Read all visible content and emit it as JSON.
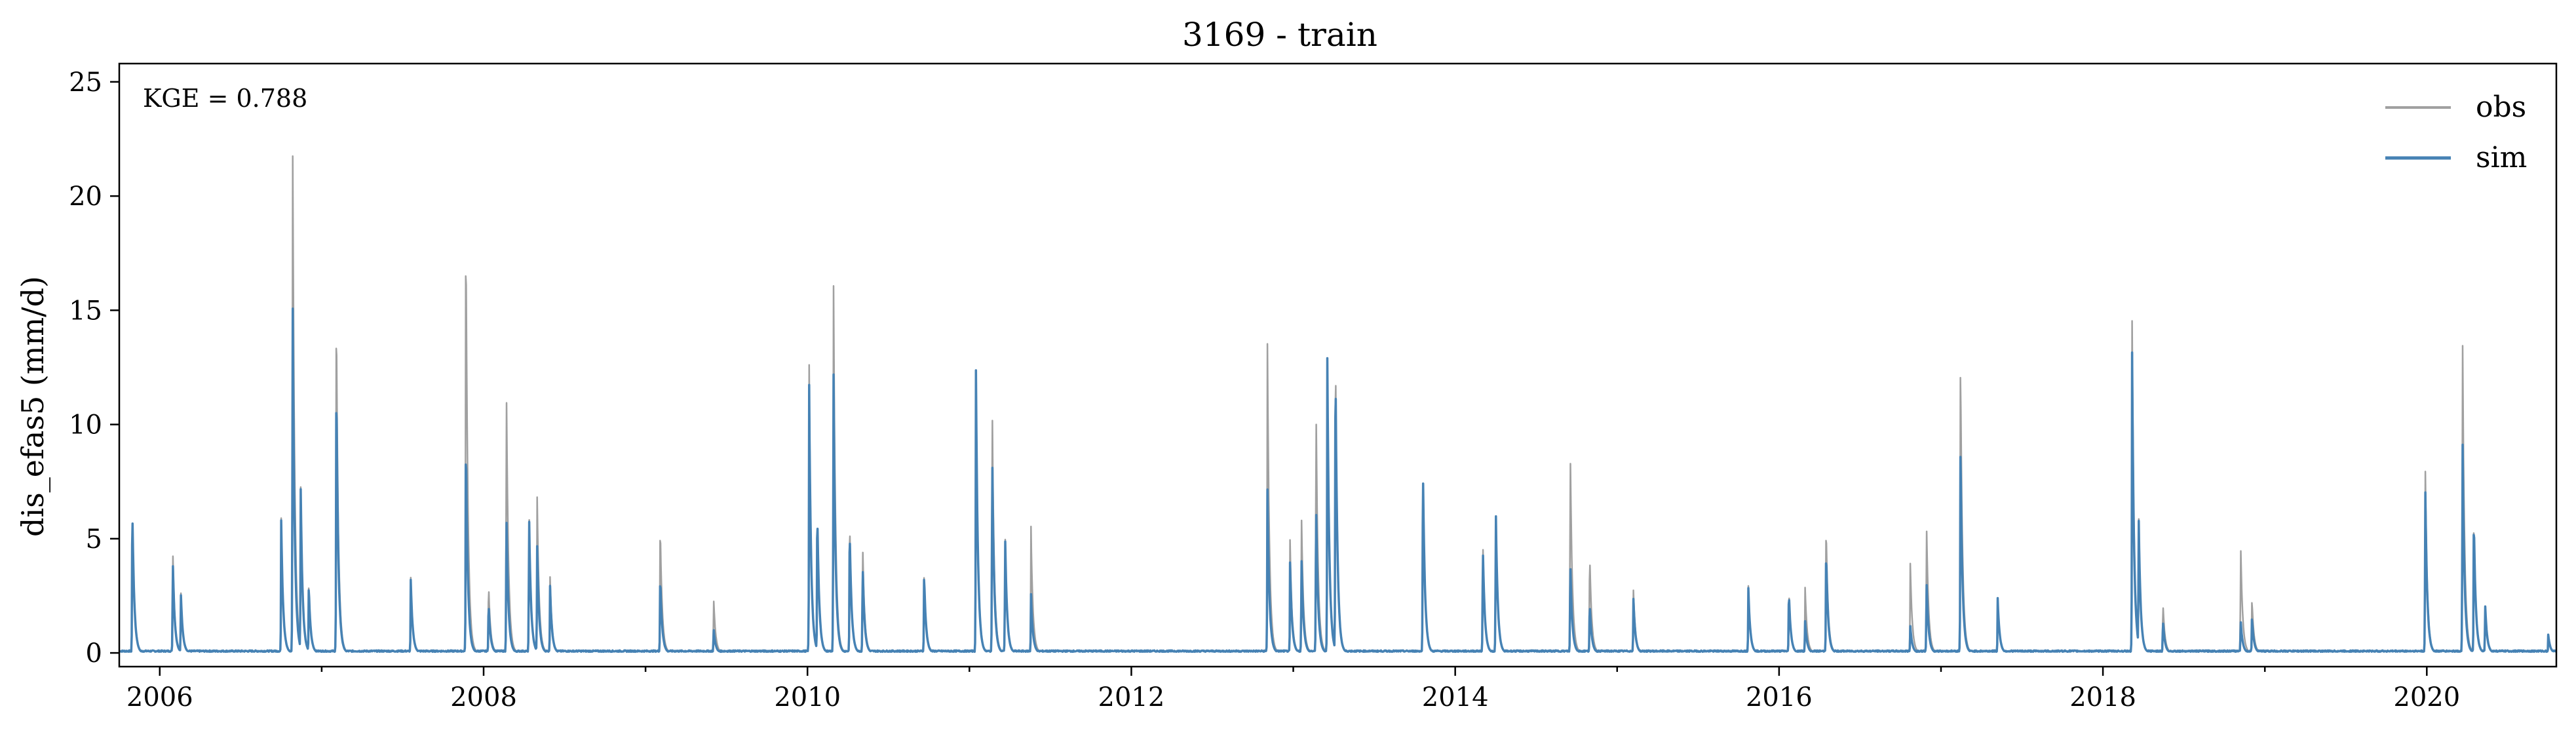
{
  "chart_data": {
    "type": "line",
    "title": "3169 - train",
    "xlabel": "",
    "ylabel": "dis_efas5 (mm/d)",
    "annotation": "KGE = 0.788",
    "xlim": [
      2005.75,
      2020.8
    ],
    "ylim": [
      -0.6,
      25.8
    ],
    "x_ticks": [
      2006,
      2008,
      2010,
      2012,
      2014,
      2016,
      2018,
      2020
    ],
    "x_tick_labels": [
      "2006",
      "2008",
      "2010",
      "2012",
      "2014",
      "2016",
      "2018",
      "2020"
    ],
    "y_ticks": [
      0,
      5,
      10,
      15,
      20,
      25
    ],
    "y_tick_labels": [
      "0",
      "5",
      "10",
      "15",
      "20",
      "25"
    ],
    "grid": false,
    "legend_position": "top-right",
    "series": [
      {
        "name": "obs",
        "color": "#a0a0a0",
        "baseline": 0.05,
        "peaks": [
          [
            2005.83,
            6.8
          ],
          [
            2006.08,
            4.8
          ],
          [
            2006.13,
            2.8
          ],
          [
            2006.75,
            5.9
          ],
          [
            2006.82,
            24.1
          ],
          [
            2006.87,
            7.6
          ],
          [
            2006.92,
            3.1
          ],
          [
            2007.09,
            16.0
          ],
          [
            2007.55,
            3.3
          ],
          [
            2007.89,
            19.8
          ],
          [
            2008.03,
            3.2
          ],
          [
            2008.14,
            12.7
          ],
          [
            2008.28,
            6.6
          ],
          [
            2008.33,
            7.3
          ],
          [
            2008.41,
            3.4
          ],
          [
            2009.09,
            5.9
          ],
          [
            2009.42,
            2.5
          ],
          [
            2010.01,
            12.9
          ],
          [
            2010.06,
            6.6
          ],
          [
            2010.16,
            17.4
          ],
          [
            2010.26,
            6.2
          ],
          [
            2010.34,
            5.1
          ],
          [
            2010.72,
            3.6
          ],
          [
            2011.04,
            12.7
          ],
          [
            2011.14,
            11.8
          ],
          [
            2011.22,
            5.5
          ],
          [
            2011.38,
            5.6
          ],
          [
            2012.84,
            14.0
          ],
          [
            2012.98,
            5.0
          ],
          [
            2013.05,
            6.5
          ],
          [
            2013.14,
            11.6
          ],
          [
            2013.21,
            13.2
          ],
          [
            2013.26,
            14.2
          ],
          [
            2013.8,
            8.8
          ],
          [
            2014.17,
            5.3
          ],
          [
            2014.25,
            6.7
          ],
          [
            2014.71,
            9.5
          ],
          [
            2014.83,
            4.6
          ],
          [
            2015.1,
            2.9
          ],
          [
            2015.81,
            3.0
          ],
          [
            2016.06,
            2.9
          ],
          [
            2016.16,
            3.1
          ],
          [
            2016.29,
            5.9
          ],
          [
            2016.81,
            4.0
          ],
          [
            2016.91,
            6.1
          ],
          [
            2017.12,
            13.2
          ],
          [
            2017.35,
            2.4
          ],
          [
            2018.18,
            14.7
          ],
          [
            2018.22,
            6.5
          ],
          [
            2018.37,
            2.3
          ],
          [
            2018.85,
            5.0
          ],
          [
            2018.92,
            2.4
          ],
          [
            2019.99,
            8.7
          ],
          [
            2020.22,
            14.9
          ],
          [
            2020.29,
            6.3
          ],
          [
            2020.36,
            2.2
          ],
          [
            2020.75,
            0.8
          ]
        ]
      },
      {
        "name": "sim",
        "color": "#4682b4",
        "baseline": 0.05,
        "peaks": [
          [
            2005.83,
            6.8
          ],
          [
            2006.08,
            4.3
          ],
          [
            2006.13,
            2.7
          ],
          [
            2006.75,
            5.8
          ],
          [
            2006.82,
            16.7
          ],
          [
            2006.87,
            7.5
          ],
          [
            2006.92,
            3.0
          ],
          [
            2007.09,
            12.6
          ],
          [
            2007.55,
            3.2
          ],
          [
            2007.89,
            9.9
          ],
          [
            2008.03,
            2.3
          ],
          [
            2008.14,
            6.6
          ],
          [
            2008.28,
            6.5
          ],
          [
            2008.33,
            5.0
          ],
          [
            2008.41,
            3.0
          ],
          [
            2009.09,
            3.5
          ],
          [
            2009.42,
            1.1
          ],
          [
            2010.01,
            12.0
          ],
          [
            2010.06,
            6.6
          ],
          [
            2010.16,
            13.2
          ],
          [
            2010.26,
            5.8
          ],
          [
            2010.34,
            4.1
          ],
          [
            2010.72,
            3.5
          ],
          [
            2011.04,
            12.8
          ],
          [
            2011.14,
            9.4
          ],
          [
            2011.22,
            5.4
          ],
          [
            2011.38,
            2.6
          ],
          [
            2012.84,
            7.4
          ],
          [
            2012.98,
            4.0
          ],
          [
            2013.05,
            4.5
          ],
          [
            2013.14,
            7.0
          ],
          [
            2013.21,
            13.2
          ],
          [
            2013.26,
            13.5
          ],
          [
            2013.8,
            8.8
          ],
          [
            2014.17,
            5.0
          ],
          [
            2014.25,
            6.7
          ],
          [
            2014.71,
            4.2
          ],
          [
            2014.83,
            2.3
          ],
          [
            2015.1,
            2.5
          ],
          [
            2015.81,
            2.9
          ],
          [
            2016.06,
            2.8
          ],
          [
            2016.16,
            1.5
          ],
          [
            2016.29,
            4.7
          ],
          [
            2016.81,
            1.2
          ],
          [
            2016.91,
            3.4
          ],
          [
            2017.12,
            9.4
          ],
          [
            2017.35,
            2.4
          ],
          [
            2018.18,
            13.3
          ],
          [
            2018.22,
            6.4
          ],
          [
            2018.37,
            1.5
          ],
          [
            2018.85,
            1.5
          ],
          [
            2018.92,
            1.6
          ],
          [
            2019.99,
            7.7
          ],
          [
            2020.22,
            10.1
          ],
          [
            2020.29,
            6.2
          ],
          [
            2020.36,
            2.2
          ],
          [
            2020.75,
            0.8
          ]
        ]
      }
    ]
  }
}
